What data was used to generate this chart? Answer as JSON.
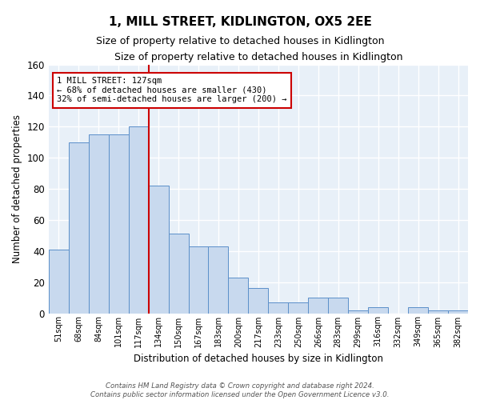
{
  "title": "1, MILL STREET, KIDLINGTON, OX5 2EE",
  "subtitle": "Size of property relative to detached houses in Kidlington",
  "xlabel": "Distribution of detached houses by size in Kidlington",
  "ylabel": "Number of detached properties",
  "categories": [
    "51sqm",
    "68sqm",
    "84sqm",
    "101sqm",
    "117sqm",
    "134sqm",
    "150sqm",
    "167sqm",
    "183sqm",
    "200sqm",
    "217sqm",
    "233sqm",
    "250sqm",
    "266sqm",
    "283sqm",
    "299sqm",
    "316sqm",
    "332sqm",
    "349sqm",
    "365sqm",
    "382sqm"
  ],
  "values": [
    41,
    110,
    115,
    115,
    120,
    82,
    51,
    43,
    43,
    23,
    16,
    7,
    7,
    10,
    10,
    2,
    4,
    0,
    4,
    2,
    2
  ],
  "bar_color": "#c8d9ee",
  "bar_edge_color": "#5b8fc9",
  "background_color": "#e8f0f8",
  "grid_color": "#ffffff",
  "vline_color": "#cc0000",
  "annotation_line1": "1 MILL STREET: 127sqm",
  "annotation_line2": "← 68% of detached houses are smaller (430)",
  "annotation_line3": "32% of semi-detached houses are larger (200) →",
  "annotation_box_color": "#ffffff",
  "annotation_border_color": "#cc0000",
  "footer_line1": "Contains HM Land Registry data © Crown copyright and database right 2024.",
  "footer_line2": "Contains public sector information licensed under the Open Government Licence v3.0.",
  "ylim": [
    0,
    160
  ],
  "yticks": [
    0,
    20,
    40,
    60,
    80,
    100,
    120,
    140,
    160
  ],
  "fig_width": 6.0,
  "fig_height": 5.0,
  "dpi": 100
}
